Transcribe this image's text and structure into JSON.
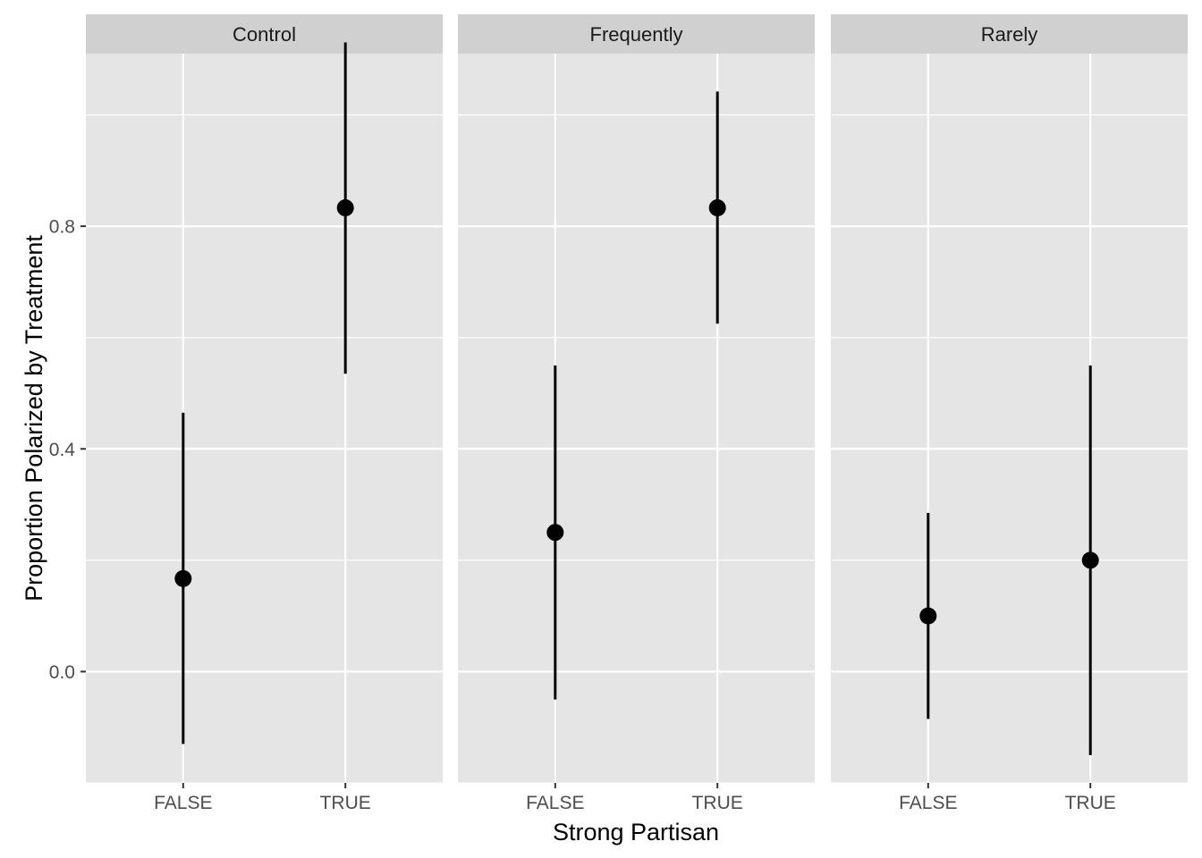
{
  "chart_data": {
    "type": "pointrange",
    "xlabel": "Strong Partisan",
    "ylabel": "Proportion Polarized by Treatment",
    "categories": [
      "FALSE",
      "TRUE"
    ],
    "y_ticks": [
      0.0,
      0.4,
      0.8
    ],
    "y_tick_labels": [
      "0.0",
      "0.4",
      "0.8"
    ],
    "ylim": [
      -0.2,
      1.11
    ],
    "grid": true,
    "legend": "none",
    "colors": {
      "panel_bg": "#e5e5e5",
      "strip_bg": "#d0d0d0",
      "grid": "#ffffff",
      "point": "#000000"
    },
    "facets": [
      {
        "name": "Control",
        "points": [
          {
            "x": "FALSE",
            "y": 0.167,
            "ymin": -0.13,
            "ymax": 0.465
          },
          {
            "x": "TRUE",
            "y": 0.833,
            "ymin": 0.535,
            "ymax": 1.13
          }
        ]
      },
      {
        "name": "Frequently",
        "points": [
          {
            "x": "FALSE",
            "y": 0.25,
            "ymin": -0.05,
            "ymax": 0.55
          },
          {
            "x": "TRUE",
            "y": 0.833,
            "ymin": 0.625,
            "ymax": 1.042
          }
        ]
      },
      {
        "name": "Rarely",
        "points": [
          {
            "x": "FALSE",
            "y": 0.1,
            "ymin": -0.085,
            "ymax": 0.285
          },
          {
            "x": "TRUE",
            "y": 0.2,
            "ymin": -0.15,
            "ymax": 0.55
          }
        ]
      }
    ]
  }
}
